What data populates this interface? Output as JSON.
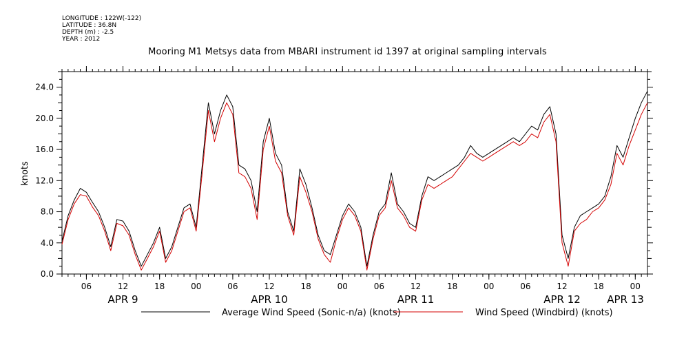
{
  "metadata": {
    "longitude": "LONGITUDE : 122W(-122)",
    "latitude": "LATITUDE : 36.8N",
    "depth": "DEPTH (m) : -2.5",
    "year": "YEAR : 2012"
  },
  "chart_data": {
    "type": "line",
    "title": "Mooring M1 Metsys data from MBARI instrument id 1397 at original sampling intervals",
    "ylabel": "knots",
    "xlabel": "",
    "x_unit": "hours since APR 9 00:00",
    "xlim": [
      2,
      98
    ],
    "ylim": [
      0,
      26
    ],
    "y_ticks": [
      "0.0",
      "4.0",
      "8.0",
      "12.0",
      "16.0",
      "20.0",
      "24.0"
    ],
    "y_tick_values": [
      0,
      4,
      8,
      12,
      16,
      20,
      24
    ],
    "x_ticks": [
      "06",
      "12",
      "18",
      "00",
      "06",
      "12",
      "18",
      "00",
      "06",
      "12",
      "18",
      "00",
      "06",
      "12",
      "18",
      "00"
    ],
    "x_tick_values": [
      6,
      12,
      18,
      24,
      30,
      36,
      42,
      48,
      54,
      60,
      66,
      72,
      78,
      84,
      90,
      96
    ],
    "day_labels": [
      "APR 9",
      "APR 10",
      "APR 11",
      "APR 12",
      "APR 13"
    ],
    "day_label_values": [
      12,
      36,
      60,
      84,
      101
    ],
    "grid": false,
    "legend_position": "bottom",
    "series": [
      {
        "name": "Average Wind Speed (Sonic-n/a) (knots)",
        "color": "#000000",
        "x": [
          2,
          3,
          4,
          5,
          6,
          7,
          8,
          9,
          10,
          11,
          12,
          13,
          14,
          15,
          16,
          17,
          18,
          19,
          20,
          21,
          22,
          23,
          24,
          25,
          26,
          27,
          28,
          29,
          30,
          31,
          32,
          33,
          34,
          35,
          36,
          37,
          38,
          39,
          40,
          41,
          42,
          43,
          44,
          45,
          46,
          47,
          48,
          49,
          50,
          51,
          52,
          53,
          54,
          55,
          56,
          57,
          58,
          59,
          60,
          61,
          62,
          63,
          64,
          65,
          66,
          67,
          68,
          69,
          70,
          71,
          72,
          73,
          74,
          75,
          76,
          77,
          78,
          79,
          80,
          81,
          82,
          83,
          84,
          85,
          86,
          87,
          88,
          89,
          90,
          91,
          92,
          93,
          94,
          95,
          96,
          97,
          98
        ],
        "y": [
          4.2,
          7.5,
          9.5,
          11.0,
          10.5,
          9.2,
          8.0,
          6.0,
          3.5,
          7.0,
          6.8,
          5.5,
          3.0,
          1.0,
          2.5,
          4.0,
          6.0,
          2.0,
          3.5,
          6.0,
          8.5,
          9.0,
          6.0,
          14.0,
          22.0,
          18.0,
          21.0,
          23.0,
          21.5,
          14.0,
          13.5,
          12.0,
          8.0,
          17.0,
          20.0,
          15.5,
          14.0,
          8.0,
          5.5,
          13.5,
          11.5,
          8.5,
          5.0,
          3.0,
          2.5,
          5.0,
          7.5,
          9.0,
          8.0,
          6.0,
          1.0,
          5.0,
          8.0,
          9.0,
          13.0,
          9.0,
          8.0,
          6.5,
          6.0,
          10.0,
          12.5,
          12.0,
          12.5,
          13.0,
          13.5,
          14.0,
          15.0,
          16.5,
          15.5,
          15.0,
          15.5,
          16.0,
          16.5,
          17.0,
          17.5,
          17.0,
          18.0,
          19.0,
          18.5,
          20.5,
          21.5,
          18.0,
          5.0,
          2.0,
          6.0,
          7.5,
          8.0,
          8.5,
          9.0,
          10.0,
          12.5,
          16.5,
          15.0,
          17.5,
          20.0,
          22.0,
          23.5
        ]
      },
      {
        "name": "Wind Speed (Windbird) (knots)",
        "color": "#d40000",
        "x": [
          2,
          3,
          4,
          5,
          6,
          7,
          8,
          9,
          10,
          11,
          12,
          13,
          14,
          15,
          16,
          17,
          18,
          19,
          20,
          21,
          22,
          23,
          24,
          25,
          26,
          27,
          28,
          29,
          30,
          31,
          32,
          33,
          34,
          35,
          36,
          37,
          38,
          39,
          40,
          41,
          42,
          43,
          44,
          45,
          46,
          47,
          48,
          49,
          50,
          51,
          52,
          53,
          54,
          55,
          56,
          57,
          58,
          59,
          60,
          61,
          62,
          63,
          64,
          65,
          66,
          67,
          68,
          69,
          70,
          71,
          72,
          73,
          74,
          75,
          76,
          77,
          78,
          79,
          80,
          81,
          82,
          83,
          84,
          85,
          86,
          87,
          88,
          89,
          90,
          91,
          92,
          93,
          94,
          95,
          96,
          97,
          98
        ],
        "y": [
          3.8,
          7.0,
          9.0,
          10.2,
          10.0,
          8.6,
          7.5,
          5.5,
          3.0,
          6.5,
          6.2,
          5.0,
          2.5,
          0.5,
          2.0,
          3.5,
          5.5,
          1.5,
          3.0,
          5.5,
          8.0,
          8.5,
          5.5,
          13.0,
          21.0,
          17.0,
          20.0,
          22.0,
          20.5,
          13.0,
          12.5,
          11.0,
          7.0,
          16.0,
          19.0,
          14.5,
          13.0,
          7.5,
          5.0,
          12.5,
          10.5,
          8.0,
          4.5,
          2.5,
          1.5,
          4.5,
          7.0,
          8.5,
          7.5,
          5.5,
          0.5,
          4.5,
          7.5,
          8.5,
          12.0,
          8.5,
          7.5,
          6.0,
          5.5,
          9.5,
          11.5,
          11.0,
          11.5,
          12.0,
          12.5,
          13.5,
          14.5,
          15.5,
          15.0,
          14.5,
          15.0,
          15.5,
          16.0,
          16.5,
          17.0,
          16.5,
          17.0,
          18.0,
          17.5,
          19.5,
          20.5,
          17.0,
          4.0,
          1.0,
          5.5,
          6.5,
          7.0,
          8.0,
          8.5,
          9.5,
          11.5,
          15.5,
          14.0,
          16.5,
          18.5,
          20.5,
          22.0
        ]
      }
    ]
  }
}
